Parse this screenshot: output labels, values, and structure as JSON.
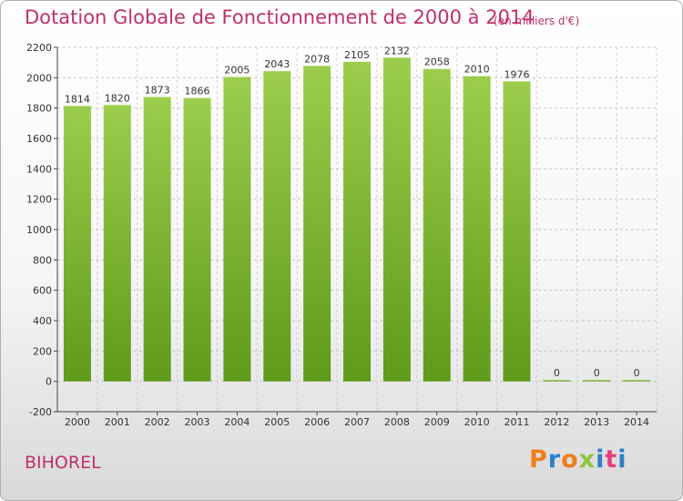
{
  "header": {
    "title": "Dotation Globale de Fonctionnement de 2000 à 2014",
    "unit": "(en milliers d'€)"
  },
  "footer": {
    "place": "BIHOREL",
    "logo": "Proxiti"
  },
  "colors": {
    "title": "#c0306a",
    "bar_top": "#9ccd4c",
    "bar_bottom": "#5f9a1a",
    "logo": [
      "#f07f1a",
      "#2e7fc8",
      "#f07f1a",
      "#8cc640",
      "#2e7fc8",
      "#e93f80",
      "#2e7fc8"
    ]
  },
  "chart_data": {
    "type": "bar",
    "categories": [
      "2000",
      "2001",
      "2002",
      "2003",
      "2004",
      "2005",
      "2006",
      "2007",
      "2008",
      "2009",
      "2010",
      "2011",
      "2012",
      "2013",
      "2014"
    ],
    "values": [
      1814,
      1820,
      1873,
      1866,
      2005,
      2043,
      2078,
      2105,
      2132,
      2058,
      2010,
      1976,
      0,
      0,
      0
    ],
    "ylim": [
      -200,
      2200
    ],
    "yticks": [
      -200,
      0,
      200,
      400,
      600,
      800,
      1000,
      1200,
      1400,
      1600,
      1800,
      2000,
      2200
    ],
    "grid": "horizontal dashed",
    "legend": "none"
  }
}
